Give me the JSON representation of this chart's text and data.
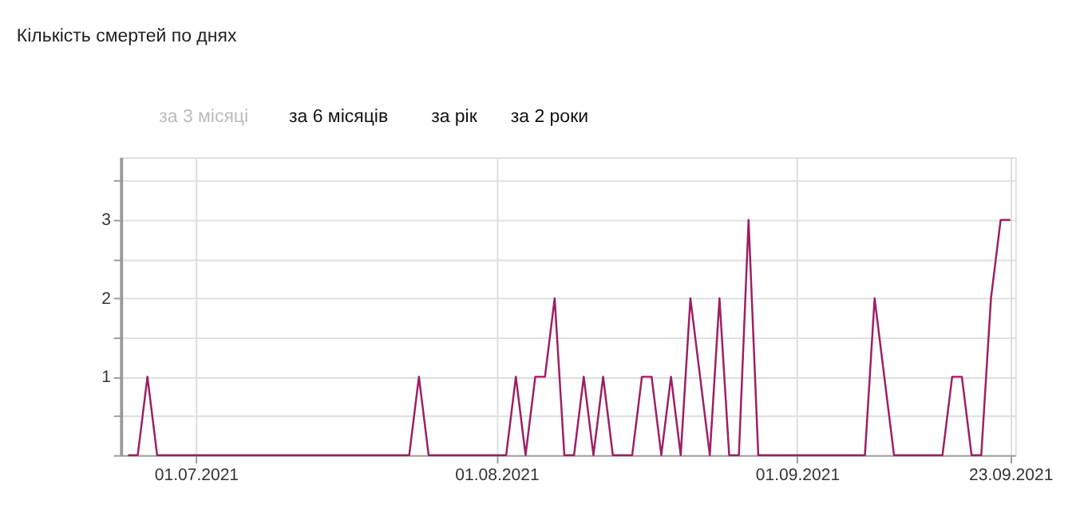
{
  "chart_data": {
    "type": "line",
    "title": "Кількість смертей по днях",
    "annotations": [
      "за 3 місяці",
      "за 6 місяців",
      "за рік",
      "за 2 роки"
    ],
    "x": [
      "2021-06-24",
      "2021-06-25",
      "2021-06-26",
      "2021-06-27",
      "2021-06-28",
      "2021-06-29",
      "2021-06-30",
      "2021-07-01",
      "2021-07-02",
      "2021-07-03",
      "2021-07-04",
      "2021-07-05",
      "2021-07-06",
      "2021-07-07",
      "2021-07-08",
      "2021-07-09",
      "2021-07-10",
      "2021-07-11",
      "2021-07-12",
      "2021-07-13",
      "2021-07-14",
      "2021-07-15",
      "2021-07-16",
      "2021-07-17",
      "2021-07-18",
      "2021-07-19",
      "2021-07-20",
      "2021-07-21",
      "2021-07-22",
      "2021-07-23",
      "2021-07-24",
      "2021-07-25",
      "2021-07-26",
      "2021-07-27",
      "2021-07-28",
      "2021-07-29",
      "2021-07-30",
      "2021-07-31",
      "2021-08-01",
      "2021-08-02",
      "2021-08-03",
      "2021-08-04",
      "2021-08-05",
      "2021-08-06",
      "2021-08-07",
      "2021-08-08",
      "2021-08-09",
      "2021-08-10",
      "2021-08-11",
      "2021-08-12",
      "2021-08-13",
      "2021-08-14",
      "2021-08-15",
      "2021-08-16",
      "2021-08-17",
      "2021-08-18",
      "2021-08-19",
      "2021-08-20",
      "2021-08-21",
      "2021-08-22",
      "2021-08-23",
      "2021-08-24",
      "2021-08-25",
      "2021-08-26",
      "2021-08-27",
      "2021-08-28",
      "2021-08-29",
      "2021-08-30",
      "2021-08-31",
      "2021-09-01",
      "2021-09-02",
      "2021-09-03",
      "2021-09-04",
      "2021-09-05",
      "2021-09-06",
      "2021-09-07",
      "2021-09-08",
      "2021-09-09",
      "2021-09-10",
      "2021-09-11",
      "2021-09-12",
      "2021-09-13",
      "2021-09-14",
      "2021-09-15",
      "2021-09-16",
      "2021-09-17",
      "2021-09-18",
      "2021-09-19",
      "2021-09-20",
      "2021-09-21",
      "2021-09-22",
      "2021-09-23"
    ],
    "series": [
      {
        "color": "#9e1f63",
        "values": [
          0,
          0,
          1,
          0,
          0,
          0,
          0,
          0,
          0,
          0,
          0,
          0,
          0,
          0,
          0,
          0,
          0,
          0,
          0,
          0,
          0,
          0,
          0,
          0,
          0,
          0,
          0,
          0,
          0,
          0,
          1,
          0,
          0,
          0,
          0,
          0,
          0,
          0,
          0,
          0,
          1,
          0,
          1,
          1,
          2,
          0,
          0,
          1,
          0,
          1,
          0,
          0,
          0,
          1,
          1,
          0,
          1,
          0,
          2,
          1,
          0,
          2,
          0,
          0,
          3,
          0,
          0,
          0,
          0,
          0,
          0,
          0,
          0,
          0,
          0,
          0,
          0,
          2,
          1,
          0,
          0,
          0,
          0,
          0,
          0,
          1,
          1,
          0,
          0,
          2,
          3,
          3
        ]
      }
    ],
    "xlim": [
      "2021-06-23T06:00",
      "2021-09-23T12:00"
    ],
    "xticks": [
      {
        "value": "2021-07-01",
        "label": "01.07.2021"
      },
      {
        "value": "2021-08-01",
        "label": "01.08.2021"
      },
      {
        "value": "2021-09-01",
        "label": "01.09.2021"
      },
      {
        "value": "2021-09-23",
        "label": "23.09.2021"
      }
    ],
    "ylim": [
      0,
      3.8
    ],
    "yticks": [
      {
        "value": 0,
        "label": null
      },
      {
        "value": 0.5,
        "label": null
      },
      1,
      {
        "value": 1.5,
        "label": null
      },
      2,
      {
        "value": 2.5,
        "label": null
      },
      3,
      {
        "value": 3.5,
        "label": null
      }
    ],
    "grid": true,
    "marker": "none",
    "line_style": "solid"
  }
}
